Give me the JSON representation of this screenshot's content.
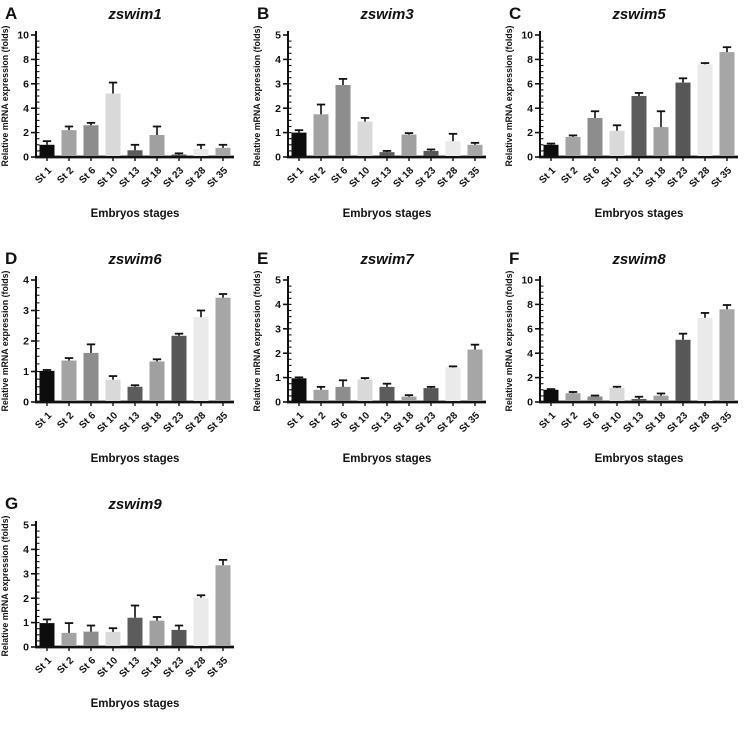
{
  "figure": {
    "background": "#ffffff",
    "axis_color": "#111111",
    "error_color": "#111111",
    "bar_colors": [
      "#0d0d0d",
      "#a3a3a3",
      "#8d8d8d",
      "#d9d9d9",
      "#5c5c5c",
      "#a0a0a0",
      "#575757",
      "#eaeaea",
      "#a6a6a6"
    ],
    "categories": [
      "St 1",
      "St 2",
      "St 6",
      "St 10",
      "St 13",
      "St 18",
      "St 23",
      "St 28",
      "St 35"
    ],
    "xlabel": "Embryos stages",
    "ylabel": "Relative mRNA expression (folds)"
  },
  "chart_data": [
    {
      "type": "bar",
      "panel": "A",
      "title": "zswim1",
      "categories": [
        "St 1",
        "St 2",
        "St 6",
        "St 10",
        "St 13",
        "St 18",
        "St 23",
        "St 28",
        "St 35"
      ],
      "values": [
        1.0,
        2.2,
        2.6,
        5.2,
        0.55,
        1.8,
        0.2,
        0.65,
        0.75
      ],
      "errors": [
        0.3,
        0.3,
        0.2,
        0.9,
        0.45,
        0.7,
        0.1,
        0.35,
        0.25
      ],
      "ylim": [
        0,
        10
      ],
      "ytick_step": 2,
      "xlabel": "Embryos stages",
      "ylabel": "Relative mRNA expression (folds)",
      "grid": false,
      "legend": false
    },
    {
      "type": "bar",
      "panel": "B",
      "title": "zswim3",
      "categories": [
        "St 1",
        "St 2",
        "St 6",
        "St 10",
        "St 13",
        "St 18",
        "St 23",
        "St 28",
        "St 35"
      ],
      "values": [
        1.0,
        1.75,
        2.95,
        1.45,
        0.2,
        0.92,
        0.25,
        0.65,
        0.5
      ],
      "errors": [
        0.1,
        0.4,
        0.25,
        0.15,
        0.05,
        0.06,
        0.06,
        0.3,
        0.08
      ],
      "ylim": [
        0,
        5
      ],
      "ytick_step": 1,
      "xlabel": "Embryos stages",
      "ylabel": "Relative mRNA expression (folds)",
      "grid": false,
      "legend": false
    },
    {
      "type": "bar",
      "panel": "C",
      "title": "zswim5",
      "categories": [
        "St 1",
        "St 2",
        "St 6",
        "St 10",
        "St 13",
        "St 18",
        "St 23",
        "St 28",
        "St 35"
      ],
      "values": [
        1.0,
        1.65,
        3.2,
        2.15,
        5.0,
        2.45,
        6.1,
        7.6,
        8.6
      ],
      "errors": [
        0.1,
        0.12,
        0.55,
        0.45,
        0.25,
        1.3,
        0.35,
        0.1,
        0.4
      ],
      "ylim": [
        0,
        10
      ],
      "ytick_step": 2,
      "xlabel": "Embryos stages",
      "ylabel": "Relative mRNA expression (folds)",
      "grid": false,
      "legend": false
    },
    {
      "type": "bar",
      "panel": "D",
      "title": "zswim6",
      "categories": [
        "St 1",
        "St 2",
        "St 6",
        "St 10",
        "St 13",
        "St 18",
        "St 23",
        "St 28",
        "St 35"
      ],
      "values": [
        1.02,
        1.36,
        1.61,
        0.73,
        0.5,
        1.33,
        2.17,
        2.78,
        3.42
      ],
      "errors": [
        0.03,
        0.08,
        0.28,
        0.12,
        0.05,
        0.07,
        0.07,
        0.22,
        0.12
      ],
      "ylim": [
        0,
        4
      ],
      "ytick_step": 1,
      "xlabel": "Embryos stages",
      "ylabel": "Relative mRNA expression (folds)",
      "grid": false,
      "legend": false
    },
    {
      "type": "bar",
      "panel": "E",
      "title": "zswim7",
      "categories": [
        "St 1",
        "St 2",
        "St 6",
        "St 10",
        "St 13",
        "St 18",
        "St 23",
        "St 28",
        "St 35"
      ],
      "values": [
        0.97,
        0.5,
        0.62,
        0.92,
        0.62,
        0.22,
        0.57,
        1.42,
        2.15
      ],
      "errors": [
        0.04,
        0.12,
        0.27,
        0.06,
        0.13,
        0.06,
        0.05,
        0.04,
        0.2
      ],
      "ylim": [
        0,
        5
      ],
      "ytick_step": 1,
      "xlabel": "Embryos stages",
      "ylabel": "Relative mRNA expression (folds)",
      "grid": false,
      "legend": false
    },
    {
      "type": "bar",
      "panel": "F",
      "title": "zswim8",
      "categories": [
        "St 1",
        "St 2",
        "St 6",
        "St 10",
        "St 13",
        "St 18",
        "St 23",
        "St 28",
        "St 35"
      ],
      "values": [
        1.0,
        0.72,
        0.45,
        1.15,
        0.25,
        0.52,
        5.1,
        6.9,
        7.6
      ],
      "errors": [
        0.06,
        0.1,
        0.08,
        0.1,
        0.18,
        0.18,
        0.5,
        0.4,
        0.35
      ],
      "ylim": [
        0,
        10
      ],
      "ytick_step": 2,
      "xlabel": "Embryos stages",
      "ylabel": "Relative mRNA expression (folds)",
      "grid": false,
      "legend": false
    },
    {
      "type": "bar",
      "panel": "G",
      "title": "zswim9",
      "categories": [
        "St 1",
        "St 2",
        "St 6",
        "St 10",
        "St 13",
        "St 18",
        "St 23",
        "St 28",
        "St 35"
      ],
      "values": [
        0.98,
        0.58,
        0.63,
        0.62,
        1.2,
        1.08,
        0.7,
        2.02,
        3.35
      ],
      "errors": [
        0.15,
        0.4,
        0.25,
        0.15,
        0.5,
        0.15,
        0.18,
        0.1,
        0.22
      ],
      "ylim": [
        0,
        5
      ],
      "ytick_step": 1,
      "xlabel": "Embryos stages",
      "ylabel": "Relative mRNA expression (folds)",
      "grid": false,
      "legend": false
    }
  ]
}
